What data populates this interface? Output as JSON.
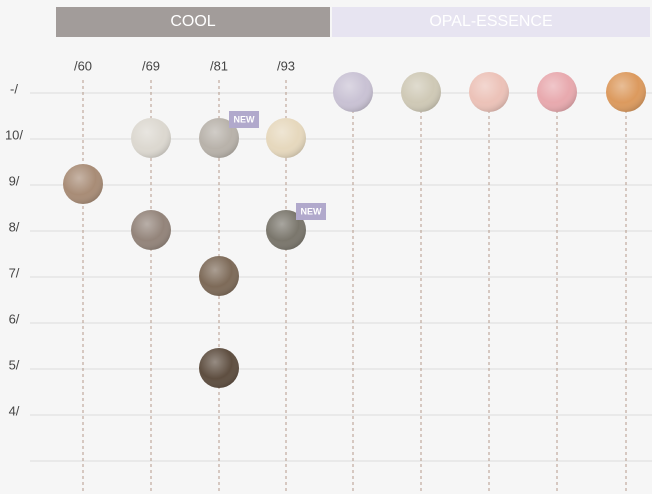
{
  "header": {
    "sections": [
      "COOL",
      "OPAL-ESSENCE"
    ]
  },
  "columns": [
    "/60",
    "/69",
    "/81",
    "/93",
    null,
    null,
    null,
    null,
    null
  ],
  "rows": [
    "-/",
    "10/",
    "9/",
    "8/",
    "7/",
    "6/",
    "5/",
    "4/"
  ],
  "swatches": [
    {
      "column": 0,
      "row": 2,
      "color": "#a88c76"
    },
    {
      "column": 1,
      "row": 1,
      "color": "#dcd8d0"
    },
    {
      "column": 1,
      "row": 3,
      "color": "#93847a"
    },
    {
      "column": 2,
      "row": 1,
      "color": "#b8b2aa",
      "badge": "NEW"
    },
    {
      "column": 2,
      "row": 4,
      "color": "#7d6a58"
    },
    {
      "column": 2,
      "row": 6,
      "color": "#5e4e40"
    },
    {
      "column": 3,
      "row": 1,
      "color": "#e6d8bd"
    },
    {
      "column": 3,
      "row": 3,
      "color": "#7a766c",
      "badge": "NEW"
    },
    {
      "column": 4,
      "row": 0,
      "color": "#c9c2d4"
    },
    {
      "column": 5,
      "row": 0,
      "color": "#cfc9b6"
    },
    {
      "column": 6,
      "row": 0,
      "color": "#ecc2b8"
    },
    {
      "column": 7,
      "row": 0,
      "color": "#e8a9ae"
    },
    {
      "column": 8,
      "row": 0,
      "color": "#dc9a5e"
    }
  ]
}
